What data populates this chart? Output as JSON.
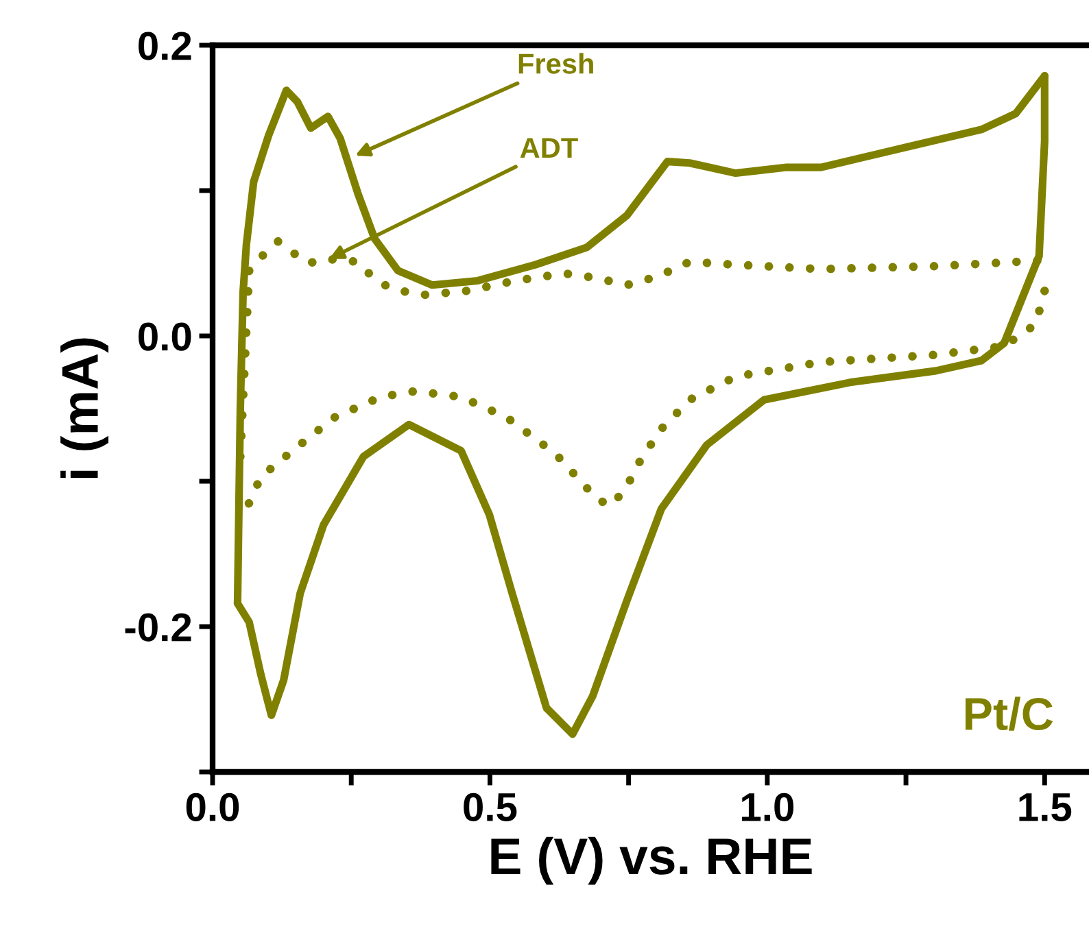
{
  "chart_data": {
    "type": "line",
    "xlabel": "E (V) vs. RHE",
    "ylabel": "i (mA)",
    "xlim": [
      0,
      1.58
    ],
    "ylim": [
      -0.3,
      0.2
    ],
    "xticks": [
      {
        "value": 0,
        "label": "0.0"
      },
      {
        "value": 0.25,
        "label": null
      },
      {
        "value": 0.5,
        "label": "0.5"
      },
      {
        "value": 0.75,
        "label": null
      },
      {
        "value": 1.0,
        "label": "1.0"
      },
      {
        "value": 1.25,
        "label": null
      },
      {
        "value": 1.5,
        "label": "1.5"
      }
    ],
    "yticks": [
      {
        "value": -0.3,
        "label": null
      },
      {
        "value": -0.2,
        "label": "-0.2"
      },
      {
        "value": -0.1,
        "label": null
      },
      {
        "value": 0,
        "label": "0.0"
      },
      {
        "value": 0.1,
        "label": null
      },
      {
        "value": 0.2,
        "label": "0.2"
      }
    ],
    "grid": false,
    "marker": "none",
    "series": [
      {
        "color": "#808000",
        "line_style": "solid",
        "x": [
          0.045,
          0.05,
          0.055,
          0.061,
          0.074,
          0.101,
          0.133,
          0.153,
          0.177,
          0.208,
          0.23,
          0.262,
          0.292,
          0.334,
          0.396,
          0.478,
          0.582,
          0.675,
          0.747,
          0.82,
          0.86,
          0.943,
          1.035,
          1.097,
          1.252,
          1.386,
          1.448,
          1.5
        ],
        "values": [
          -0.184,
          -0.05,
          0.03,
          0.063,
          0.106,
          0.138,
          0.169,
          0.161,
          0.143,
          0.151,
          0.136,
          0.098,
          0.067,
          0.045,
          0.035,
          0.038,
          0.049,
          0.061,
          0.083,
          0.12,
          0.119,
          0.112,
          0.116,
          0.116,
          0.13,
          0.142,
          0.153,
          0.179
        ]
      },
      {
        "color": "#808000",
        "line_style": "solid",
        "x": [
          1.5,
          1.5,
          1.49,
          1.427,
          1.386,
          1.304,
          1.149,
          0.994,
          0.891,
          0.809,
          0.747,
          0.685,
          0.649,
          0.602,
          0.54,
          0.499,
          0.448,
          0.354,
          0.272,
          0.2,
          0.158,
          0.128,
          0.106,
          0.087,
          0.066,
          0.045
        ],
        "values": [
          0.179,
          0.134,
          0.055,
          -0.005,
          -0.017,
          -0.024,
          -0.032,
          -0.044,
          -0.075,
          -0.119,
          -0.182,
          -0.248,
          -0.274,
          -0.256,
          -0.177,
          -0.123,
          -0.079,
          -0.061,
          -0.083,
          -0.13,
          -0.177,
          -0.237,
          -0.261,
          -0.233,
          -0.197,
          -0.184
        ]
      },
      {
        "color": "#808000",
        "line_style": "dotted",
        "x": [
          0.05,
          0.066,
          0.092,
          0.118,
          0.146,
          0.173,
          0.205,
          0.262,
          0.287,
          0.319,
          0.375,
          0.458,
          0.546,
          0.634,
          0.69,
          0.747,
          0.803,
          0.86,
          0.943,
          1.097,
          1.304,
          1.5
        ],
        "values": [
          -0.083,
          0.045,
          0.056,
          0.065,
          0.057,
          0.05,
          0.053,
          0.051,
          0.041,
          0.033,
          0.028,
          0.031,
          0.038,
          0.043,
          0.04,
          0.035,
          0.041,
          0.051,
          0.049,
          0.046,
          0.048,
          0.052
        ]
      },
      {
        "color": "#808000",
        "line_style": "dotted",
        "x": [
          1.5,
          1.484,
          1.427,
          1.304,
          1.097,
          0.943,
          0.86,
          0.809,
          0.772,
          0.742,
          0.715,
          0.69,
          0.618,
          0.53,
          0.448,
          0.365,
          0.303,
          0.22,
          0.144,
          0.087,
          0.061
        ],
        "values": [
          0.031,
          0.008,
          -0.007,
          -0.013,
          -0.018,
          -0.028,
          -0.044,
          -0.064,
          -0.085,
          -0.107,
          -0.117,
          -0.111,
          -0.081,
          -0.056,
          -0.042,
          -0.038,
          -0.042,
          -0.056,
          -0.079,
          -0.097,
          -0.119
        ]
      }
    ],
    "annotations": [
      {
        "text": "Fresh",
        "x": 0.257,
        "y": 0.124
      },
      {
        "text": "ADT",
        "x": 0.21,
        "y": 0.053
      },
      "Pt/C"
    ]
  }
}
